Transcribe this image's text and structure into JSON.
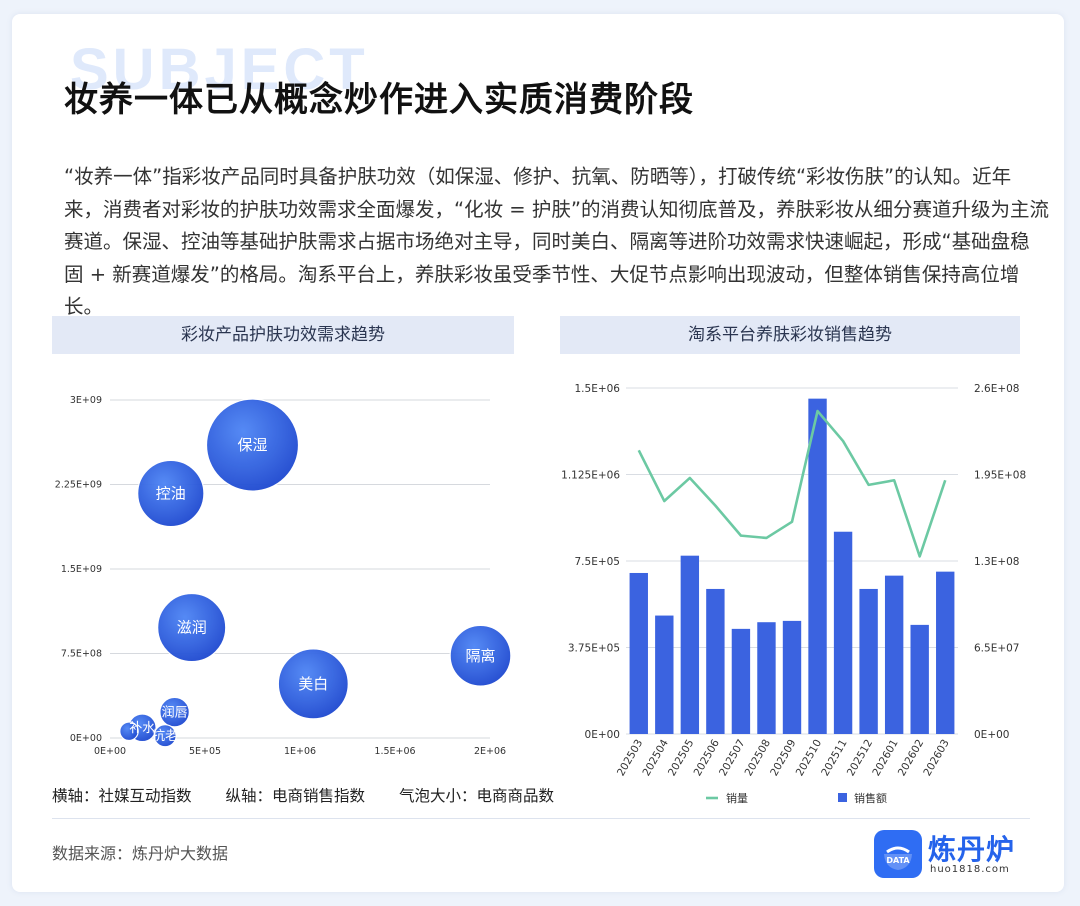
{
  "page": {
    "watermark": "SUBJECT",
    "title": "妆养一体已从概念炒作进入实质消费阶段",
    "intro": "“妆养一体”指彩妆产品同时具备护肤功效（如保湿、修护、抗氧、防晒等），打破传统“彩妆伤肤”的认知。近年来，消费者对彩妆的护肤功效需求全面爆发，“化妆 = 护肤”的消费认知彻底普及，养肤彩妆从细分赛道升级为主流赛道。保湿、控油等基础护肤需求占据市场绝对主导，同时美白、隔离等进阶功效需求快速崛起，形成“基础盘稳固 + 新赛道爆发”的格局。淘系平台上，养肤彩妆虽受季节性、大促节点影响出现波动，但整体销售保持高位增长。",
    "axis_note": {
      "x": "横轴：社媒互动指数",
      "y": "纵轴：电商销售指数",
      "size": "气泡大小：电商商品数"
    },
    "source": "数据来源：炼丹炉大数据",
    "logo": {
      "name": "炼丹炉",
      "badge": "DATA",
      "url": "huo1818.com"
    },
    "colors": {
      "accent": "#2f6df3",
      "bar": "#3b63e0",
      "line": "#6cc9a3",
      "header_bg": "#e3e9f6"
    }
  },
  "chart_data": [
    {
      "type": "scatter",
      "title": "彩妆产品护肤功效需求趋势",
      "xlabel": "社媒互动指数",
      "ylabel": "电商销售指数",
      "size_label": "电商商品数",
      "xlim": [
        0,
        2000000
      ],
      "ylim": [
        0,
        3000000000
      ],
      "x_ticks": [
        "0E+00",
        "5E+05",
        "1E+06",
        "1.5E+06",
        "2E+06"
      ],
      "y_ticks": [
        "0E+00",
        "7.5E+08",
        "1.5E+09",
        "2.25E+09",
        "3E+09"
      ],
      "grid": true,
      "points": [
        {
          "label": "保湿",
          "x": 750000,
          "y": 2600000000,
          "size": 100
        },
        {
          "label": "控油",
          "x": 320000,
          "y": 2170000000,
          "size": 72
        },
        {
          "label": "滋润",
          "x": 430000,
          "y": 980000000,
          "size": 74
        },
        {
          "label": "隔离",
          "x": 1950000,
          "y": 730000000,
          "size": 66
        },
        {
          "label": "美白",
          "x": 1070000,
          "y": 480000000,
          "size": 76
        },
        {
          "label": "润唇",
          "x": 340000,
          "y": 230000000,
          "size": 32
        },
        {
          "label": "补水",
          "x": 170000,
          "y": 90000000,
          "size": 30
        },
        {
          "label": "抗老",
          "x": 290000,
          "y": 20000000,
          "size": 24
        },
        {
          "label": "",
          "x": 100000,
          "y": 60000000,
          "size": 20
        }
      ]
    },
    {
      "type": "bar",
      "title": "淘系平台养肤彩妆销售趋势",
      "categories": [
        "202503",
        "202504",
        "202505",
        "202506",
        "202507",
        "202508",
        "202509",
        "202510",
        "202511",
        "202512",
        "202601",
        "202602",
        "202603"
      ],
      "y_left_ticks": [
        "0E+00",
        "3.75E+05",
        "7.5E+05",
        "1.125E+06",
        "1.5E+06"
      ],
      "y_right_ticks": [
        "0E+00",
        "6.5E+07",
        "1.3E+08",
        "1.95E+08",
        "2.6E+08"
      ],
      "ylim_left": [
        0,
        1500000
      ],
      "ylim_right": [
        0,
        260000000
      ],
      "legend_position": "bottom",
      "series": [
        {
          "name": "销量",
          "type": "line",
          "axis": "left",
          "values": [
            1230000,
            1010000,
            1110000,
            990000,
            860000,
            850000,
            920000,
            1400000,
            1270000,
            1080000,
            1100000,
            770000,
            1100000
          ]
        },
        {
          "name": "销售额",
          "type": "bar",
          "axis": "right",
          "values": [
            121000000,
            89000000,
            134000000,
            109000000,
            79000000,
            84000000,
            85000000,
            252000000,
            152000000,
            109000000,
            119000000,
            82000000,
            122000000
          ]
        }
      ]
    }
  ]
}
